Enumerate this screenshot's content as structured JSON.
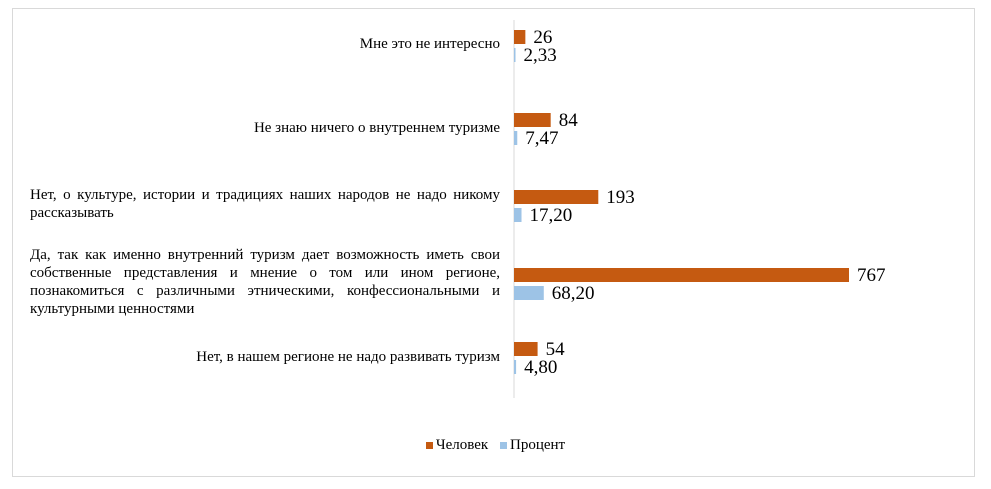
{
  "chart_data": {
    "type": "bar",
    "orientation": "horizontal",
    "categories": [
      "Мне это не интересно",
      "Не знаю ничего о внутреннем туризме",
      "Нет, о культуре, истории и традициях наших народов не надо никому рассказывать",
      "Да, так как именно внутренний туризм дает возможность иметь свои собственные представления и мнение о том или ином регионе, познакомиться с различными этническими, конфессиональными и культурными ценностями",
      "Нет, в нашем регионе не надо развивать туризм"
    ],
    "series": [
      {
        "name": "Человек",
        "color": "#c55a11",
        "values": [
          26,
          84,
          193,
          767,
          54
        ],
        "labels": [
          "26",
          "84",
          "193",
          "767",
          "54"
        ]
      },
      {
        "name": "Процент",
        "color": "#9dc3e6",
        "values": [
          2.33,
          7.47,
          17.2,
          68.2,
          4.8
        ],
        "labels": [
          "2,33",
          "7,47",
          "17,20",
          "68,20",
          "4,80"
        ]
      }
    ],
    "legend_position": "bottom",
    "grid": false
  }
}
